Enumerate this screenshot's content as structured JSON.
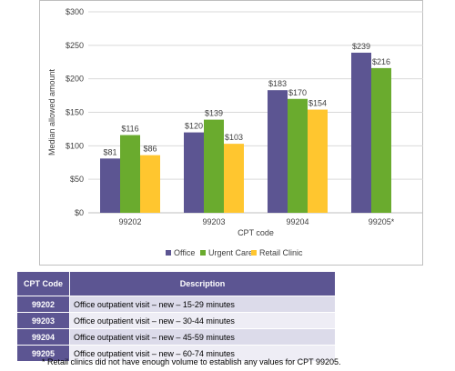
{
  "chart_data": {
    "type": "bar",
    "ylabel": "Median allowed amount",
    "xlabel": "CPT code",
    "ylim": [
      0,
      300
    ],
    "y_ticks": [
      "$0",
      "$50",
      "$100",
      "$150",
      "$200",
      "$250",
      "$300"
    ],
    "y_tick_values": [
      0,
      50,
      100,
      150,
      200,
      250,
      300
    ],
    "categories": [
      "99202",
      "99203",
      "99204",
      "99205*"
    ],
    "series": [
      {
        "name": "Office",
        "color": "#5c5592",
        "values": [
          81,
          120,
          183,
          239
        ],
        "labels": [
          "$81",
          "$120",
          "$183",
          "$239"
        ]
      },
      {
        "name": "Urgent Care",
        "color": "#6aab2e",
        "values": [
          116,
          139,
          170,
          216
        ],
        "labels": [
          "$116",
          "$139",
          "$170",
          "$216"
        ]
      },
      {
        "name": "Retail Clinic",
        "color": "#ffc62f",
        "values": [
          86,
          103,
          154,
          null
        ],
        "labels": [
          "$86",
          "$103",
          "$154",
          ""
        ]
      }
    ],
    "legend_position": "bottom",
    "grid": true
  },
  "table": {
    "headers": {
      "code": "CPT Code",
      "description": "Description"
    },
    "rows": [
      {
        "code": "99202",
        "description": "Office outpatient visit – new – 15-29 minutes"
      },
      {
        "code": "99203",
        "description": "Office outpatient visit – new – 30-44 minutes"
      },
      {
        "code": "99204",
        "description": "Office outpatient visit – new – 45-59 minutes"
      },
      {
        "code": "99205",
        "description": "Office outpatient visit – new – 60-74 minutes"
      }
    ]
  },
  "footnote": "* Retail clinics did not have enough volume to establish any values for CPT 99205."
}
